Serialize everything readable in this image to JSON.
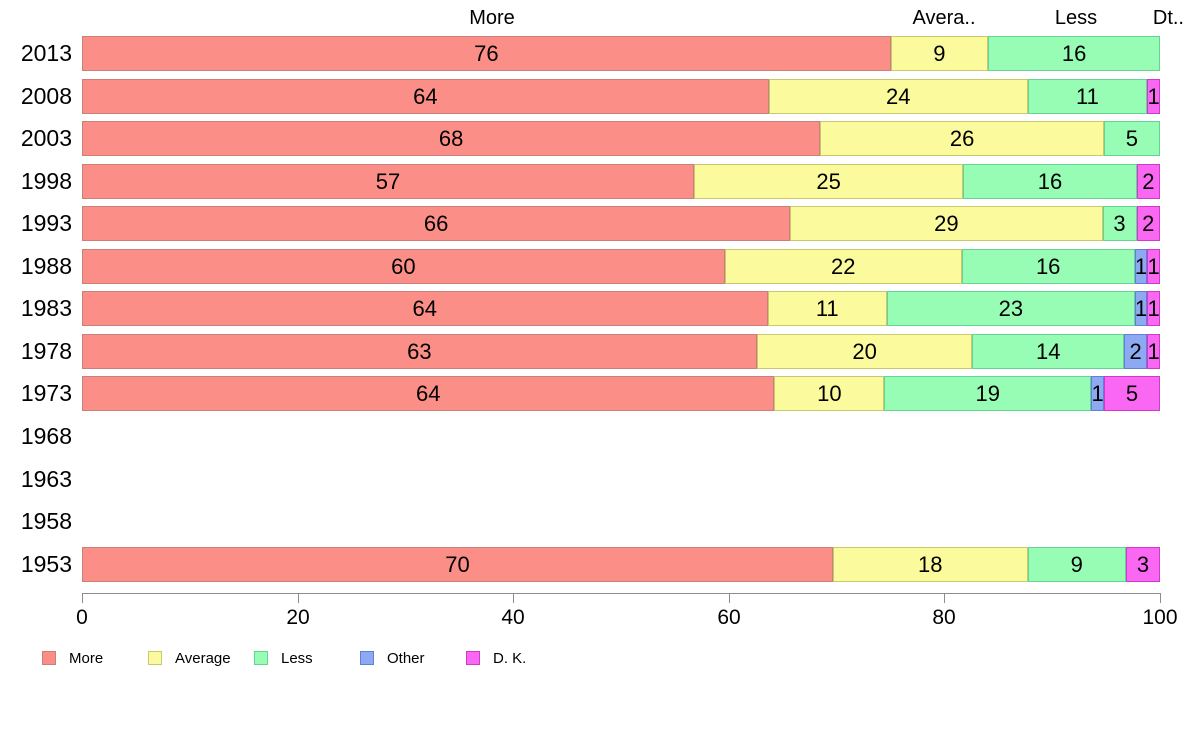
{
  "chart_data": {
    "type": "bar",
    "orientation": "horizontal",
    "stacked": true,
    "normalized_to_100": true,
    "title": "",
    "xlabel": "",
    "ylabel": "",
    "grid": false,
    "legend_position": "bottom",
    "x_axis": {
      "range": [
        0,
        100
      ],
      "ticks": [
        0,
        20,
        40,
        60,
        80,
        100
      ]
    },
    "column_headers": [
      "More",
      "Avera..",
      "Less",
      "Dt.."
    ],
    "categories": [
      "2013",
      "2008",
      "2003",
      "1998",
      "1993",
      "1988",
      "1983",
      "1978",
      "1973",
      "1968",
      "1963",
      "1958",
      "1953"
    ],
    "series": [
      {
        "name": "More",
        "color": "#FB8F88",
        "border_color": "#C97F7C",
        "values": [
          76,
          64,
          68,
          57,
          66,
          60,
          64,
          63,
          64,
          null,
          null,
          null,
          70
        ]
      },
      {
        "name": "Average",
        "color": "#FBFB9D",
        "border_color": "#C8C86E",
        "values": [
          9,
          24,
          26,
          25,
          29,
          22,
          11,
          20,
          10,
          null,
          null,
          null,
          18
        ]
      },
      {
        "name": "Less",
        "color": "#97FDB5",
        "border_color": "#66D296",
        "values": [
          16,
          11,
          5,
          16,
          3,
          16,
          23,
          14,
          19,
          null,
          null,
          null,
          9
        ]
      },
      {
        "name": "Other",
        "color": "#8CA9F1",
        "border_color": "#5F7FD8",
        "values": [
          null,
          null,
          null,
          null,
          null,
          1,
          1,
          2,
          1,
          null,
          null,
          null,
          null
        ]
      },
      {
        "name": "D. K.",
        "color": "#FA68F3",
        "border_color": "#D03ACB",
        "values": [
          null,
          1,
          null,
          2,
          2,
          1,
          1,
          1,
          5,
          null,
          null,
          null,
          3
        ]
      }
    ]
  }
}
